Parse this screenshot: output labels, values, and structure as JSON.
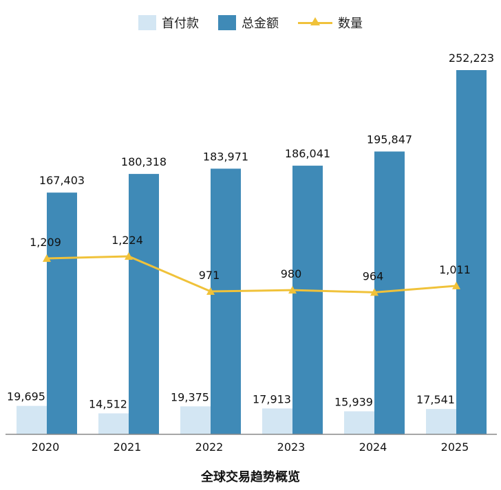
{
  "legend": {
    "down_payment": "首付款",
    "total_amount": "总金额",
    "count": "数量"
  },
  "caption": "全球交易趋势概览",
  "colors": {
    "down_payment": "#d3e6f3",
    "total_amount": "#3f8ab7",
    "count": "#f0c23a",
    "axis": "#888888"
  },
  "chart_data": {
    "type": "bar",
    "categories": [
      "2020",
      "2021",
      "2022",
      "2023",
      "2024",
      "2025"
    ],
    "series": [
      {
        "name": "首付款",
        "type": "bar",
        "values": [
          19695,
          14512,
          19375,
          17913,
          15939,
          17541
        ],
        "labels": [
          "19,695",
          "14,512",
          "19,375",
          "17,913",
          "15,939",
          "17,541"
        ]
      },
      {
        "name": "总金额",
        "type": "bar",
        "values": [
          167403,
          180318,
          183971,
          186041,
          195847,
          252223
        ],
        "labels": [
          "167,403",
          "180,318",
          "183,971",
          "186,041",
          "195,847",
          "252,223"
        ]
      },
      {
        "name": "数量",
        "type": "line",
        "values": [
          1209,
          1224,
          971,
          980,
          964,
          1011
        ],
        "labels": [
          "1,209",
          "1,224",
          "971",
          "980",
          "964",
          "1,011"
        ]
      }
    ],
    "xlabel": "全球交易趋势概览",
    "grid": false,
    "legend_position": "top"
  }
}
